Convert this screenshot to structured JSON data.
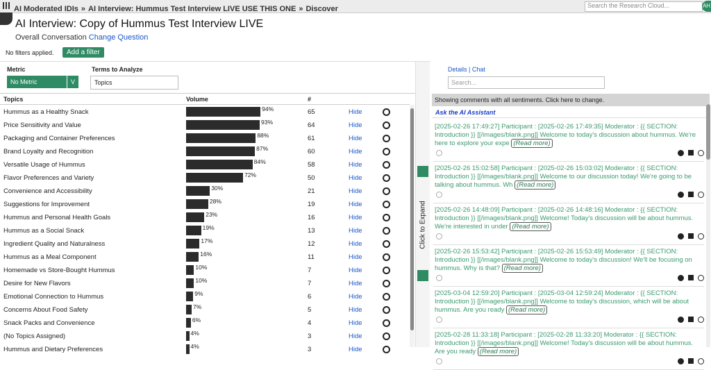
{
  "nav": {
    "breadcrumbs": [
      "AI Moderated IDIs",
      "AI Interview: Hummus Test Interview LIVE USE THIS ONE",
      "Discover"
    ],
    "separator": "»",
    "search_placeholder": "Search the Research Cloud...",
    "avatar": "AH"
  },
  "header": {
    "title": "AI Interview: Copy of Hummus Test Interview LIVE",
    "subtitle": "Overall Conversation",
    "link": "Change Question"
  },
  "filters": {
    "status": "No filters applied.",
    "button": "Add a filter"
  },
  "controls": {
    "metric_label": "Metric",
    "metric_value": "No Metric",
    "metric_toggle": "V",
    "terms_label": "Terms to Analyze",
    "terms_value": "Topics"
  },
  "table": {
    "columns": [
      "Topics",
      "Volume",
      "#"
    ],
    "rows": [
      {
        "topic": "Hummus as a Healthy Snack",
        "volume": 94,
        "volume_label": "94%",
        "count": 65,
        "action": "Hide"
      },
      {
        "topic": "Price Sensitivity and Value",
        "volume": 93,
        "volume_label": "93%",
        "count": 64,
        "action": "Hide"
      },
      {
        "topic": "Packaging and Container Preferences",
        "volume": 88,
        "volume_label": "88%",
        "count": 61,
        "action": "Hide"
      },
      {
        "topic": "Brand Loyalty and Recognition",
        "volume": 87,
        "volume_label": "87%",
        "count": 60,
        "action": "Hide"
      },
      {
        "topic": "Versatile Usage of Hummus",
        "volume": 84,
        "volume_label": "84%",
        "count": 58,
        "action": "Hide"
      },
      {
        "topic": "Flavor Preferences and Variety",
        "volume": 72,
        "volume_label": "72%",
        "count": 50,
        "action": "Hide"
      },
      {
        "topic": "Convenience and Accessibility",
        "volume": 30,
        "volume_label": "30%",
        "count": 21,
        "action": "Hide"
      },
      {
        "topic": "Suggestions for Improvement",
        "volume": 28,
        "volume_label": "28%",
        "count": 19,
        "action": "Hide"
      },
      {
        "topic": "Hummus and Personal Health Goals",
        "volume": 23,
        "volume_label": "23%",
        "count": 16,
        "action": "Hide"
      },
      {
        "topic": "Hummus as a Social Snack",
        "volume": 19,
        "volume_label": "19%",
        "count": 13,
        "action": "Hide"
      },
      {
        "topic": "Ingredient Quality and Naturalness",
        "volume": 17,
        "volume_label": "17%",
        "count": 12,
        "action": "Hide"
      },
      {
        "topic": "Hummus as a Meal Component",
        "volume": 16,
        "volume_label": "16%",
        "count": 11,
        "action": "Hide"
      },
      {
        "topic": "Homemade vs Store-Bought Hummus",
        "volume": 10,
        "volume_label": "10%",
        "count": 7,
        "action": "Hide"
      },
      {
        "topic": "Desire for New Flavors",
        "volume": 10,
        "volume_label": "10%",
        "count": 7,
        "action": "Hide"
      },
      {
        "topic": "Emotional Connection to Hummus",
        "volume": 9,
        "volume_label": "9%",
        "count": 6,
        "action": "Hide"
      },
      {
        "topic": "Concerns About Food Safety",
        "volume": 7,
        "volume_label": "7%",
        "count": 5,
        "action": "Hide"
      },
      {
        "topic": "Snack Packs and Convenience",
        "volume": 6,
        "volume_label": "6%",
        "count": 4,
        "action": "Hide"
      },
      {
        "topic": "(No Topics Assigned)",
        "volume": 4,
        "volume_label": "4%",
        "count": 3,
        "action": "Hide"
      },
      {
        "topic": "Hummus and Dietary Preferences",
        "volume": 4,
        "volume_label": "4%",
        "count": 3,
        "action": "Hide"
      }
    ]
  },
  "expand": "Click to Expand",
  "side": {
    "tabs": [
      "Details",
      "Chat"
    ],
    "search_placeholder": "Search...",
    "notice": "Showing comments with all sentiments. Click here to change.",
    "assistant": "Ask the AI Assistant",
    "comments": [
      {
        "text": "[2025-02-26 17:49:27] Participant : [2025-02-26 17:49:35] Moderator : {{ SECTION: Introduction }} [[/images/blank.png]] Welcome to today's discussion about hummus. We're here to explore your expe",
        "read_more": "(Read more)"
      },
      {
        "text": "[2025-02-26 15:02:58] Participant : [2025-02-26 15:03:02] Moderator : {{ SECTION: Introduction }} [[/images/blank.png]] Welcome to our discussion today! We're going to be talking about hummus. Wh",
        "read_more": "(Read more)"
      },
      {
        "text": "[2025-02-26 14:48:09] Participant : [2025-02-26 14:48:16] Moderator : {{ SECTION: Introduction }} [[/images/blank.png]] Welcome! Today's discussion will be about hummus. We're interested in under",
        "read_more": "(Read more)"
      },
      {
        "text": "[2025-02-26 15:53:42] Participant : [2025-02-26 15:53:49] Moderator : {{ SECTION: Introduction }} [[/images/blank.png]] Welcome to today's discussion! We'll be focusing on hummus. Why is that?",
        "read_more": "(Read more)"
      },
      {
        "text": "[2025-03-04 12:59:20] Participant : [2025-03-04 12:59:24] Moderator : {{ SECTION: Introduction }} [[/images/blank.png]] Welcome to today's discussion, which will be about hummus. Are you ready",
        "read_more": "(Read more)"
      },
      {
        "text": "[2025-02-28 11:33:18] Participant : [2025-02-28 11:33:20] Moderator : {{ SECTION: Introduction }} [[/images/blank.png]] Welcome! Today's discussion will be about hummus. Are you ready",
        "read_more": "(Read more)"
      }
    ]
  }
}
